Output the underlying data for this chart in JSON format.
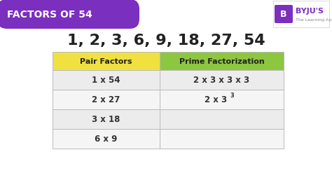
{
  "title_text": "FACTORS OF 54",
  "title_bg_color": "#7B2FBE",
  "title_text_color": "#FFFFFF",
  "factors_text": "1, 2, 3, 6, 9, 18, 27, 54",
  "factors_text_color": "#222222",
  "bg_color": "#FFFFFF",
  "table_header_left": "Pair Factors",
  "table_header_right": "Prime Factorization",
  "table_header_left_color": "#F0E040",
  "table_header_right_color": "#8DC63F",
  "table_header_text_color": "#222222",
  "table_row_color_odd": "#ECECEC",
  "table_row_color_even": "#F5F5F5",
  "pair_factors": [
    "1 x 54",
    "2 x 27",
    "3 x 18",
    "6 x 9"
  ],
  "prime_factorization_row0": "2 x 3 x 3 x 3",
  "prime_factorization_row1_base": "2 x 3",
  "prime_factorization_row1_sup": "3",
  "table_border_color": "#BBBBBB",
  "table_text_color": "#333333",
  "byju_purple": "#7B2FBE",
  "byju_text": "BYJU'S",
  "byju_subtext": "The Learning App"
}
